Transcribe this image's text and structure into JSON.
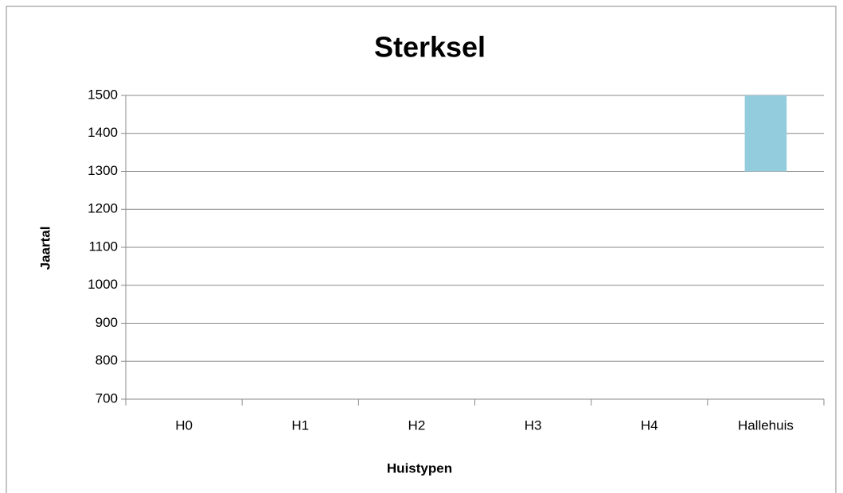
{
  "chart_data": {
    "type": "range-bar",
    "title": "Sterksel",
    "x_label": "Huistypen",
    "y_label": "Jaartal",
    "categories": [
      "H0",
      "H1",
      "H2",
      "H3",
      "H4",
      "Hallehuis"
    ],
    "low": [
      null,
      null,
      null,
      null,
      null,
      1300
    ],
    "high": [
      null,
      null,
      null,
      null,
      null,
      1500
    ],
    "color": "#93cddd",
    "ylim": [
      700,
      1500
    ],
    "yticks": [
      700,
      800,
      900,
      1000,
      1100,
      1200,
      1300,
      1400,
      1500
    ],
    "grid": true
  }
}
